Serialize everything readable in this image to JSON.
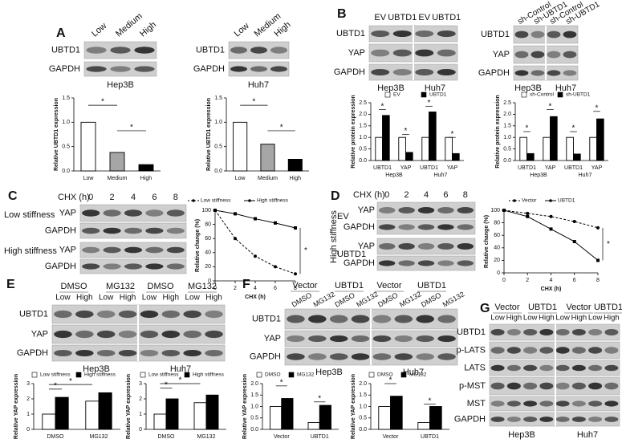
{
  "figure": {
    "panel_letters": [
      "A",
      "B",
      "C",
      "D",
      "E",
      "F",
      "G"
    ],
    "blots": [
      {
        "lanes": [
          "Low",
          "Medium",
          "High"
        ],
        "rows": [
          "UBTD1",
          "GAPDH"
        ],
        "cells": [
          "Hep3B"
        ]
      },
      {
        "lanes": [
          "Low",
          "Medium",
          "High"
        ],
        "rows": [
          "UBTD1",
          "GAPDH"
        ],
        "cells": [
          "Huh7"
        ]
      },
      {
        "lanes": [
          "EV",
          "UBTD1",
          "EV",
          "UBTD1"
        ],
        "rows": [
          "UBTD1",
          "YAP",
          "GAPDH"
        ],
        "cells": [
          "Hep3B",
          "Huh7"
        ]
      },
      {
        "lanes": [
          "sh-Control",
          "sh-UBTD1",
          "sh-Control",
          "sh-UBTD1"
        ],
        "rows": [
          "UBTD1",
          "YAP",
          "GAPDH"
        ],
        "cells": [
          "Hep3B",
          "Huh7"
        ]
      },
      {
        "header": "CHX (h)",
        "lanes": [
          "0",
          "2",
          "4",
          "6",
          "8"
        ],
        "rows": [
          "YAP",
          "GAPDH",
          "YAP",
          "GAPDH"
        ],
        "groups": [
          "Low stiffness",
          "High stiffness"
        ]
      },
      {
        "header": "CHX (h)",
        "lanes": [
          "0",
          "2",
          "4",
          "6",
          "8"
        ],
        "rows": [
          "YAP",
          "GAPDH",
          "YAP",
          "GAPDH"
        ],
        "groups": [
          "EV",
          "UBTD1"
        ],
        "side": "High stiffness"
      },
      {
        "treatments": [
          "DMSO",
          "MG132",
          "DMSO",
          "MG132"
        ],
        "lanes": [
          "Low",
          "High",
          "Low",
          "High",
          "Low",
          "High",
          "Low",
          "High"
        ],
        "rows": [
          "UBTD1",
          "YAP",
          "GAPDH"
        ],
        "cells": [
          "Hep3B",
          "Huh7"
        ]
      },
      {
        "treatments": [
          "Vector",
          "UBTD1",
          "Vector",
          "UBTD1"
        ],
        "lanes": [
          "DMSO",
          "MG132",
          "DMSO",
          "MG132",
          "DMSO",
          "MG132",
          "DMSO",
          "MG132"
        ],
        "rows": [
          "UBTD1",
          "YAP",
          "GAPDH"
        ],
        "cells": [
          "Hep3B",
          "Huh7"
        ]
      },
      {
        "treatments": [
          "Vector",
          "UBTD1",
          "Vector",
          "UBTD1"
        ],
        "lanes": [
          "Low",
          "High",
          "Low",
          "High",
          "Low",
          "High",
          "Low",
          "High"
        ],
        "rows": [
          "UBTD1",
          "p-LATS",
          "LATS",
          "p-MST",
          "MST",
          "GAPDH"
        ],
        "cells": [
          "Hep3B",
          "Huh7"
        ]
      }
    ]
  },
  "chart_data": [
    {
      "type": "bar",
      "ylabel": "Relative UBTD1 expression",
      "categories": [
        "Low",
        "Medium",
        "High"
      ],
      "values": [
        1.0,
        0.38,
        0.13
      ],
      "colors": [
        "#ffffff",
        "#a6a6a6",
        "#000000"
      ],
      "ylim": [
        0,
        1.5
      ],
      "yticks": [
        {
          "value": 0,
          "label": "0.0"
        },
        {
          "value": 0.5,
          "label": "0.5"
        },
        {
          "value": 1,
          "label": "1.0"
        },
        {
          "value": 1.5,
          "label": "1.5"
        }
      ],
      "annotations": [
        "*",
        "*"
      ]
    },
    {
      "type": "bar",
      "ylabel": "Relative UBTD1 expression",
      "categories": [
        "Low",
        "Medium",
        "High"
      ],
      "values": [
        1.0,
        0.55,
        0.24
      ],
      "colors": [
        "#ffffff",
        "#a6a6a6",
        "#000000"
      ],
      "ylim": [
        0,
        1.5
      ],
      "yticks": [
        {
          "value": 0,
          "label": "0.0"
        },
        {
          "value": 0.5,
          "label": "0.5"
        },
        {
          "value": 1,
          "label": "1.0"
        },
        {
          "value": 1.5,
          "label": "1.5"
        }
      ],
      "annotations": [
        "*",
        "*"
      ]
    },
    {
      "type": "bar",
      "ylabel": "Relative protein expression",
      "categories": [
        "UBTD1",
        "YAP",
        "UBTD1",
        "YAP"
      ],
      "groups": [
        "Hep3B",
        "Huh7"
      ],
      "series": [
        {
          "name": "EV",
          "color": "#ffffff",
          "values": [
            1.0,
            1.0,
            1.0,
            1.0
          ]
        },
        {
          "name": "UBTD1",
          "color": "#000000",
          "values": [
            1.95,
            0.35,
            2.1,
            0.3
          ]
        }
      ],
      "ylim": [
        0,
        2.5
      ],
      "yticks": [
        {
          "value": 0,
          "label": "0.0"
        },
        {
          "value": 0.5,
          "label": "0.5"
        },
        {
          "value": 1,
          "label": "1.0"
        },
        {
          "value": 1.5,
          "label": "1.5"
        },
        {
          "value": 2,
          "label": "2.0"
        },
        {
          "value": 2.5,
          "label": "2.5"
        }
      ],
      "annotations": [
        "*",
        "*",
        "*",
        "*"
      ]
    },
    {
      "type": "bar",
      "ylabel": "Relative protein expression",
      "categories": [
        "UBTD1",
        "YAP",
        "UBTD1",
        "YAP"
      ],
      "groups": [
        "Hep3B",
        "Huh7"
      ],
      "series": [
        {
          "name": "sh-Control",
          "color": "#ffffff",
          "values": [
            1.0,
            1.0,
            1.0,
            1.0
          ]
        },
        {
          "name": "sh-UBTD1",
          "color": "#000000",
          "values": [
            0.3,
            1.9,
            0.28,
            1.8
          ]
        }
      ],
      "ylim": [
        0,
        2.5
      ],
      "yticks": [
        {
          "value": 0,
          "label": "0.0"
        },
        {
          "value": 0.5,
          "label": "0.5"
        },
        {
          "value": 1,
          "label": "1.0"
        },
        {
          "value": 1.5,
          "label": "1.5"
        },
        {
          "value": 2,
          "label": "2.0"
        },
        {
          "value": 2.5,
          "label": "2.5"
        }
      ],
      "annotations": [
        "*",
        "*",
        "*",
        "*"
      ]
    },
    {
      "type": "line",
      "ylabel": "Relative change (%)",
      "xlabel": "CHX (h)",
      "x": [
        0,
        2,
        4,
        6,
        8
      ],
      "series": [
        {
          "name": "Low stiffness",
          "color": "#000000",
          "style": "dashed",
          "values": [
            100,
            60,
            35,
            20,
            10
          ]
        },
        {
          "name": "High stiffness",
          "color": "#000000",
          "style": "solid",
          "values": [
            100,
            95,
            88,
            82,
            75
          ]
        }
      ],
      "xlim": [
        0,
        8
      ],
      "xticks": [
        0,
        2,
        4,
        6,
        8
      ],
      "ylim": [
        0,
        100
      ],
      "yticks": [
        0,
        20,
        40,
        60,
        80,
        100
      ],
      "annotations": [
        "*"
      ]
    },
    {
      "type": "line",
      "ylabel": "Relative change (%)",
      "xlabel": "CHX (h)",
      "x": [
        0,
        2,
        4,
        6,
        8
      ],
      "series": [
        {
          "name": "Vector",
          "color": "#000000",
          "style": "dashed",
          "values": [
            100,
            95,
            90,
            82,
            72
          ]
        },
        {
          "name": "UBTD1",
          "color": "#000000",
          "style": "solid",
          "values": [
            100,
            90,
            70,
            50,
            20
          ]
        }
      ],
      "xlim": [
        0,
        8
      ],
      "xticks": [
        0,
        2,
        4,
        6,
        8
      ],
      "ylim": [
        0,
        100
      ],
      "yticks": [
        0,
        20,
        40,
        60,
        80,
        100
      ],
      "annotations": [
        "*"
      ]
    },
    {
      "type": "bar",
      "ylabel": "Relative YAP expression",
      "categories": [
        "DMSO",
        "MG132"
      ],
      "series": [
        {
          "name": "Low stiffness",
          "color": "#ffffff",
          "values": [
            1.0,
            1.85
          ]
        },
        {
          "name": "High stiffness",
          "color": "#000000",
          "values": [
            2.1,
            2.4
          ]
        }
      ],
      "ylim": [
        0,
        3
      ],
      "yticks": [
        0,
        1,
        2,
        3
      ],
      "annotations": [
        "*",
        "*"
      ]
    },
    {
      "type": "bar",
      "ylabel": "Relative YAP expression",
      "categories": [
        "DMSO",
        "MG132"
      ],
      "series": [
        {
          "name": "Low stiffness",
          "color": "#ffffff",
          "values": [
            1.0,
            1.75
          ]
        },
        {
          "name": "High stiffness",
          "color": "#000000",
          "values": [
            2.0,
            2.25
          ]
        }
      ],
      "ylim": [
        0,
        3
      ],
      "yticks": [
        0,
        1,
        2,
        3
      ],
      "annotations": [
        "*",
        "*"
      ]
    },
    {
      "type": "bar",
      "ylabel": "Relative YAP expression",
      "categories": [
        "Vector",
        "UBTD1"
      ],
      "series": [
        {
          "name": "DMSO",
          "color": "#ffffff",
          "values": [
            1.0,
            0.3
          ]
        },
        {
          "name": "MG132",
          "color": "#000000",
          "values": [
            1.35,
            1.05
          ]
        }
      ],
      "ylim": [
        0,
        2
      ],
      "yticks": [
        {
          "value": 0,
          "label": "0.0"
        },
        {
          "value": 0.5,
          "label": "0.5"
        },
        {
          "value": 1,
          "label": "1.0"
        },
        {
          "value": 1.5,
          "label": "1.5"
        },
        {
          "value": 2,
          "label": "2.0"
        }
      ],
      "annotations": [
        "*",
        "*"
      ]
    },
    {
      "type": "bar",
      "ylabel": "Relative YAP expression",
      "categories": [
        "Vector",
        "UBTD1"
      ],
      "series": [
        {
          "name": "DMSO",
          "color": "#ffffff",
          "values": [
            1.0,
            0.3
          ]
        },
        {
          "name": "MG132",
          "color": "#000000",
          "values": [
            1.45,
            1.0
          ]
        }
      ],
      "ylim": [
        0,
        2
      ],
      "yticks": [
        {
          "value": 0,
          "label": "0.0"
        },
        {
          "value": 0.5,
          "label": "0.5"
        },
        {
          "value": 1,
          "label": "1.0"
        },
        {
          "value": 1.5,
          "label": "1.5"
        },
        {
          "value": 2,
          "label": "2.0"
        }
      ],
      "annotations": [
        "*",
        "*"
      ]
    }
  ]
}
